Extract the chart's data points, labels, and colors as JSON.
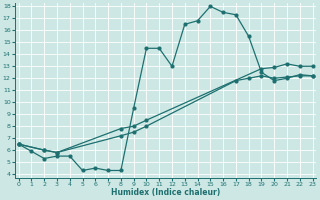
{
  "xlabel": "Humidex (Indice chaleur)",
  "bg_color": "#cde8e4",
  "grid_color": "#b8d8d4",
  "line_color": "#1e7070",
  "xlim": [
    0,
    23
  ],
  "ylim": [
    4,
    18
  ],
  "xticks": [
    0,
    1,
    2,
    3,
    4,
    5,
    6,
    7,
    8,
    9,
    10,
    11,
    12,
    13,
    14,
    15,
    16,
    17,
    18,
    19,
    20,
    21,
    22,
    23
  ],
  "yticks": [
    4,
    5,
    6,
    7,
    8,
    9,
    10,
    11,
    12,
    13,
    14,
    15,
    16,
    17,
    18
  ],
  "line1_x": [
    0,
    1,
    2,
    3,
    4,
    5,
    6,
    7,
    8,
    9,
    10,
    11,
    12,
    13,
    14,
    15,
    16,
    17,
    18,
    19,
    20,
    21,
    22,
    23
  ],
  "line1_y": [
    6.5,
    5.9,
    5.3,
    5.5,
    5.5,
    4.3,
    4.5,
    4.3,
    4.3,
    9.5,
    14.5,
    14.5,
    13.0,
    16.5,
    16.8,
    18.0,
    17.5,
    17.3,
    15.5,
    12.5,
    11.8,
    12.0,
    12.3,
    12.2
  ],
  "line2_x": [
    0,
    2,
    3,
    8,
    9,
    10,
    19,
    20,
    21,
    22,
    23
  ],
  "line2_y": [
    6.5,
    6.0,
    5.8,
    7.8,
    8.0,
    8.5,
    12.8,
    12.9,
    13.2,
    13.0,
    13.0
  ],
  "line3_x": [
    0,
    2,
    3,
    8,
    9,
    10,
    17,
    18,
    19,
    20,
    21,
    22,
    23
  ],
  "line3_y": [
    6.5,
    6.0,
    5.8,
    7.2,
    7.5,
    8.0,
    11.8,
    12.0,
    12.2,
    12.0,
    12.1,
    12.2,
    12.2
  ]
}
